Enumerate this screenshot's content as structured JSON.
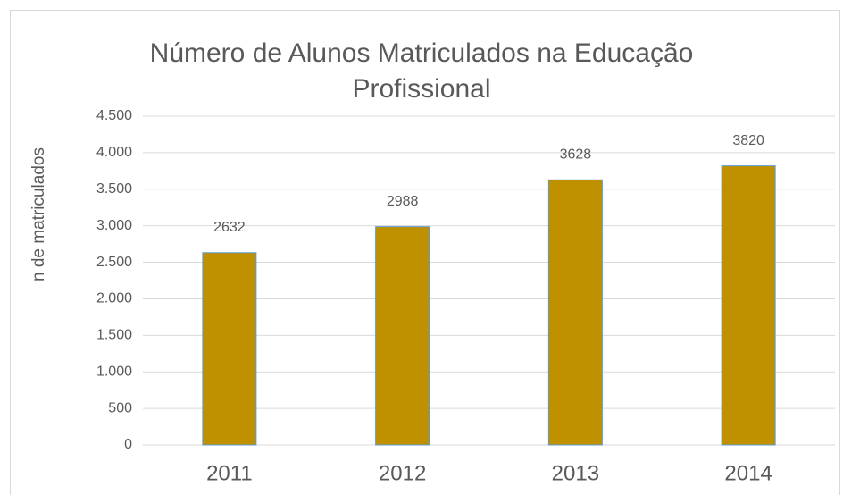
{
  "chart_data": {
    "type": "bar",
    "title": "Número de Alunos Matriculados na Educação Profissional",
    "y_label": "n de matriculados",
    "categories": [
      "2011",
      "2012",
      "2013",
      "2014"
    ],
    "values": [
      2632,
      2988,
      3628,
      3820
    ],
    "color": "#bf9000",
    "ylim": [
      0,
      4500
    ],
    "yticks": [
      0,
      500,
      {
        "value": 1000,
        "label": "1.000"
      },
      {
        "value": 1500,
        "label": "1.500"
      },
      {
        "value": 2000,
        "label": "2.000"
      },
      {
        "value": 2500,
        "label": "2.500"
      },
      {
        "value": 3000,
        "label": "3.000"
      },
      {
        "value": 3500,
        "label": "3.500"
      },
      {
        "value": 4000,
        "label": "4.000"
      },
      {
        "value": 4500,
        "label": "4.500"
      }
    ],
    "grid": true
  }
}
